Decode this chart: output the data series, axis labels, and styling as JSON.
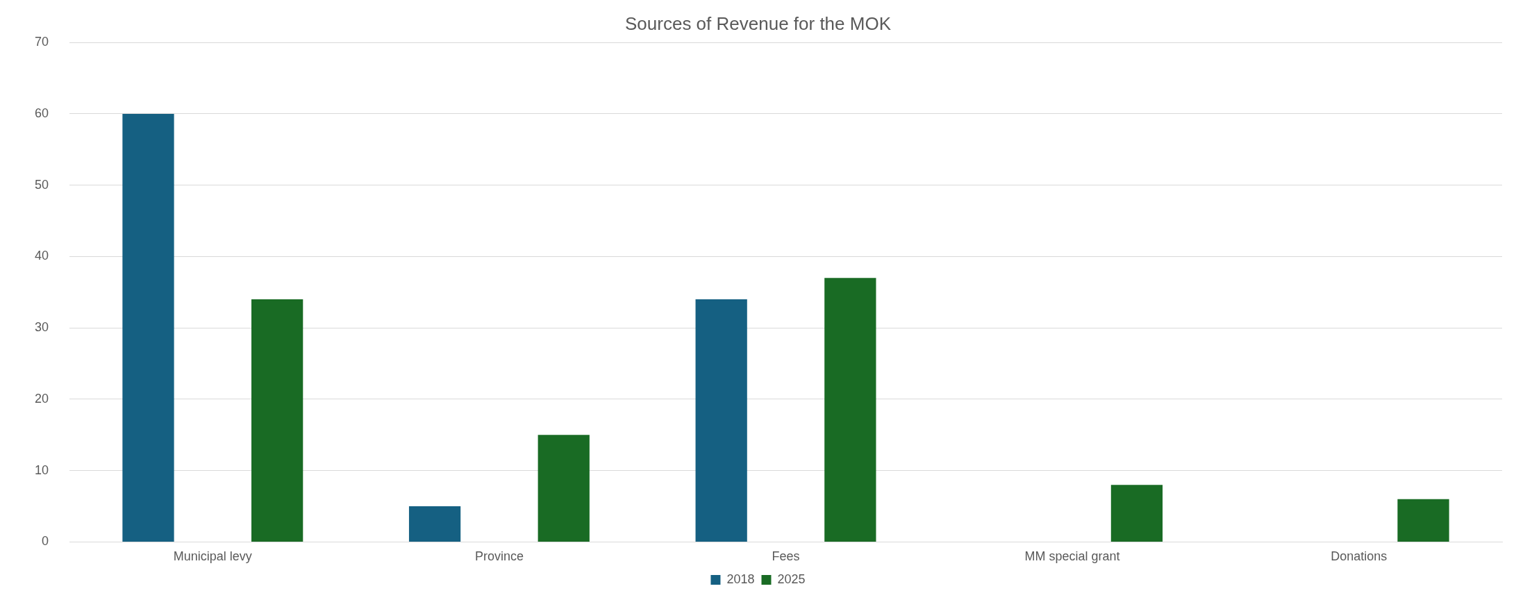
{
  "chart_data": {
    "type": "bar",
    "title": "Sources of Revenue for the MOK",
    "categories": [
      "Municipal levy",
      "Province",
      "Fees",
      "MM special grant",
      "Donations"
    ],
    "series": [
      {
        "name": "2018",
        "color": "#156082",
        "values": [
          60,
          5,
          34,
          null,
          null
        ]
      },
      {
        "name": "2025",
        "color": "#196b24",
        "values": [
          34,
          15,
          37,
          8,
          6
        ]
      }
    ],
    "ylim": [
      0,
      70
    ],
    "yticks": [
      0,
      10,
      20,
      30,
      40,
      50,
      60,
      70
    ],
    "grid": "y",
    "legend": "bottom"
  }
}
